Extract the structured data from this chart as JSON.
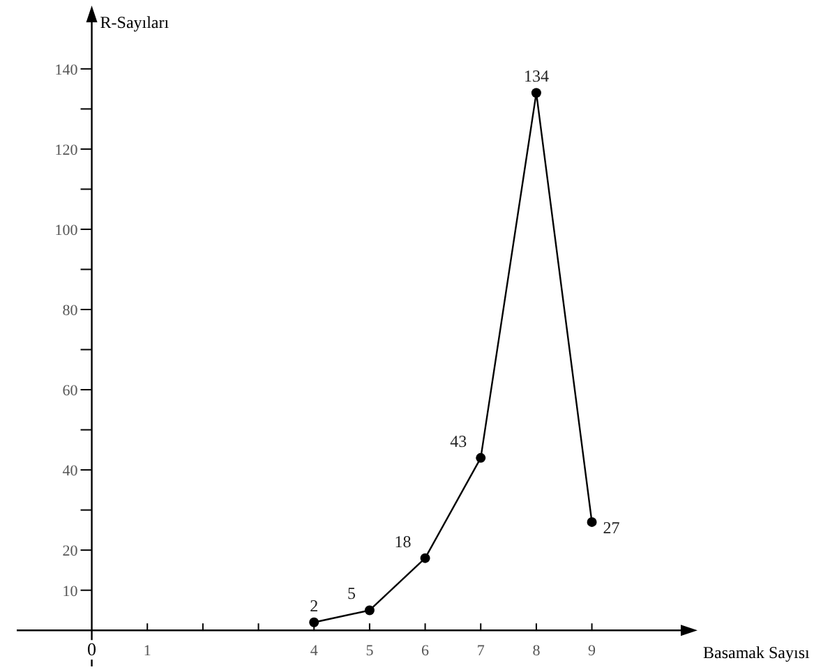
{
  "chart_data": {
    "type": "line",
    "xlabel": "Basamak Sayısı",
    "ylabel": "R-Sayıları",
    "x": [
      4,
      5,
      6,
      7,
      8,
      9
    ],
    "values": [
      2,
      5,
      18,
      43,
      134,
      27
    ],
    "color": "#000000",
    "marker": "circle",
    "line_style": "solid",
    "data_labels": true,
    "grid": false,
    "xlim": [
      -1.35,
      10.7
    ],
    "ylim": [
      -9,
      153
    ],
    "xticks": [
      {
        "value": 0,
        "label": "0"
      },
      1,
      {
        "value": 2,
        "label": null
      },
      {
        "value": 3,
        "label": null
      },
      4,
      5,
      6,
      7,
      8,
      9
    ],
    "yticks": [
      10,
      20,
      {
        "value": 30,
        "label": null
      },
      40,
      {
        "value": 50,
        "label": null
      },
      60,
      {
        "value": 70,
        "label": null
      },
      80,
      {
        "value": 90,
        "label": null
      },
      100,
      {
        "value": 110,
        "label": null
      },
      120,
      {
        "value": 130,
        "label": null
      },
      140
    ]
  }
}
